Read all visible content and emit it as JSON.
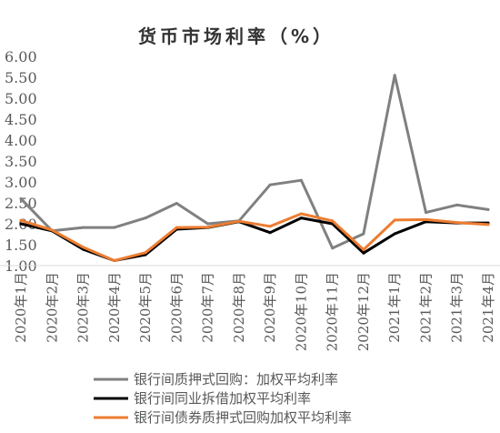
{
  "chart_data": {
    "type": "line",
    "title": "货币市场利率（%）",
    "categories": [
      "2020年1月",
      "2020年2月",
      "2020年3月",
      "2020年4月",
      "2020年5月",
      "2020年6月",
      "2020年7月",
      "2020年8月",
      "2020年9月",
      "2020年10月",
      "2020年11月",
      "2020年12月",
      "2021年1月",
      "2021年2月",
      "2021年3月",
      "2021年4月"
    ],
    "y_tick_labels": [
      "6.00",
      "5.50",
      "5.00",
      "4.50",
      "4.00",
      "3.50",
      "3.00",
      "2.50",
      "2.00",
      "1.50",
      "1.00"
    ],
    "ylim": [
      1.0,
      6.0
    ],
    "grid": false,
    "legend_position": "bottom",
    "series": [
      {
        "name": "银行间质押式回购：加权平均利率",
        "color": "#808080",
        "values": [
          2.6,
          1.83,
          1.91,
          1.91,
          2.14,
          2.49,
          2.0,
          2.07,
          2.93,
          3.04,
          1.42,
          1.76,
          5.55,
          2.27,
          2.45,
          2.34
        ]
      },
      {
        "name": "银行间同业拆借加权平均利率",
        "color": "#000000",
        "values": [
          2.0,
          1.83,
          1.39,
          1.12,
          1.26,
          1.87,
          1.91,
          2.05,
          1.79,
          2.14,
          2.0,
          1.3,
          1.76,
          2.05,
          2.02,
          2.02
        ]
      },
      {
        "name": "银行间债券质押式回购加权平均利率",
        "color": "#ED7D31",
        "values": [
          2.08,
          1.85,
          1.44,
          1.12,
          1.31,
          1.91,
          1.92,
          2.06,
          1.94,
          2.24,
          2.07,
          1.38,
          2.09,
          2.1,
          2.03,
          1.98
        ]
      }
    ]
  }
}
